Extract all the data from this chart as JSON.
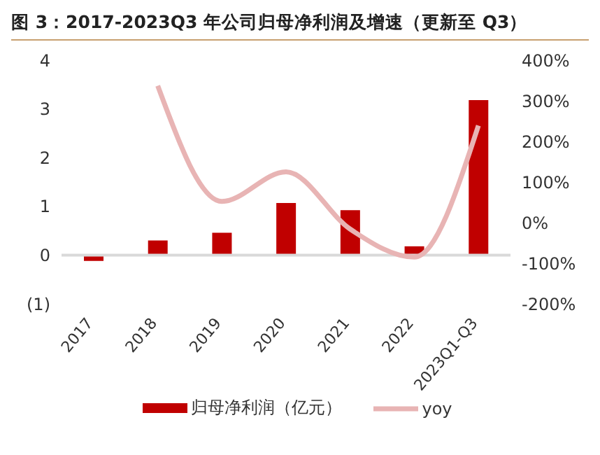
{
  "chart_data": {
    "type": "bar",
    "title": "图 3：2017-2023Q3 年公司归母净利润及增速（更新至 Q3）",
    "categories": [
      "2017",
      "2018",
      "2019",
      "2020",
      "2021",
      "2022",
      "2023Q1-Q3"
    ],
    "series": [
      {
        "name": "归母净利润（亿元）",
        "color": "#c00000",
        "values": [
          -0.12,
          0.3,
          0.46,
          1.07,
          0.92,
          0.18,
          3.18
        ]
      },
      {
        "name": "yoy",
        "type": "line",
        "axis": "y2",
        "color": "#e8b4b4",
        "values": [
          null,
          337,
          52,
          125,
          -16,
          -85,
          239
        ]
      }
    ],
    "ylim": [
      -1,
      4
    ],
    "yticks": [
      {
        "value": -1,
        "label": "(1)"
      },
      0,
      1,
      2,
      3,
      4
    ],
    "y2lim": [
      -200,
      400
    ],
    "y2ticks": [
      {
        "value": -200,
        "label": "-200%"
      },
      {
        "value": -100,
        "label": "-100%"
      },
      {
        "value": 0,
        "label": "0%"
      },
      {
        "value": 100,
        "label": "100%"
      },
      {
        "value": 200,
        "label": "200%"
      },
      {
        "value": 300,
        "label": "300%"
      },
      {
        "value": 400,
        "label": "400%"
      }
    ],
    "ref_lines": [
      {
        "axis": "y",
        "value": 0,
        "color": "#d9d9d9"
      }
    ],
    "grid": false,
    "legend": "bottom",
    "marker": "none"
  }
}
